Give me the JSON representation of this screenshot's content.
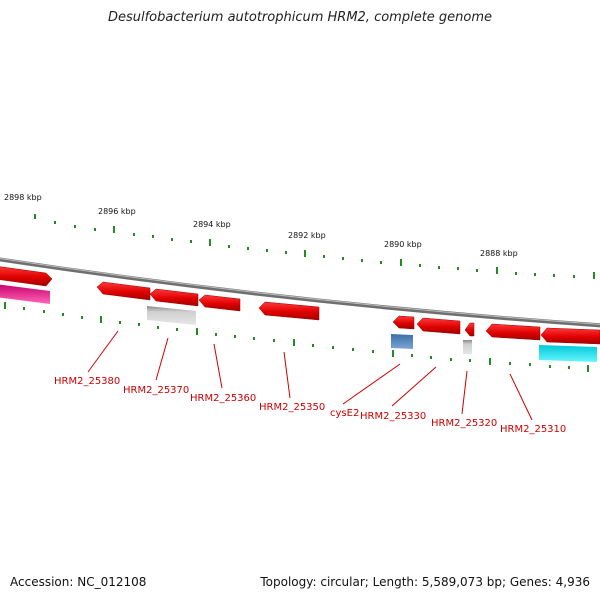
{
  "title": "Desulfobacterium autotrophicum HRM2, complete genome",
  "accession_label": "Accession: NC_012108",
  "summary_label": "Topology: circular; Length: 5,589,073 bp; Genes: 4,936",
  "kbp_labels": [
    "2898 kbp",
    "2896 kbp",
    "2894 kbp",
    "2892 kbp",
    "2890 kbp",
    "2888 kbp"
  ],
  "gene_labels": [
    "HRM2_25380",
    "HRM2_25370",
    "HRM2_25360",
    "HRM2_25350",
    "cysE2",
    "HRM2_25330",
    "HRM2_25320",
    "HRM2_25310"
  ],
  "colors": {
    "gene_red": "#ee1111",
    "gene_red_dark": "#aa0000",
    "pseudo_gray": "#b8b8b8",
    "steel_blue": "#4a7fb8",
    "magenta": "#e0308c",
    "cyan": "#00e5ee",
    "backbone": "#888888",
    "tick_green": "#228b22",
    "label_red": "#cc0000"
  }
}
